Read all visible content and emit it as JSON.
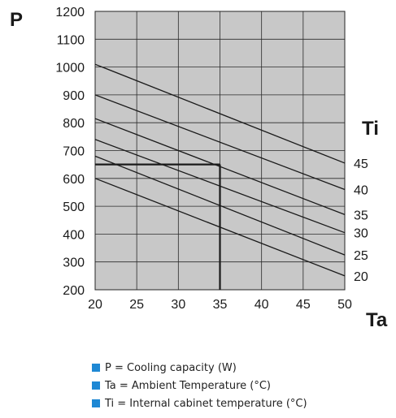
{
  "chart_data": {
    "type": "line",
    "y_title": "P",
    "x_title": "Ta",
    "series_title": "Ti",
    "xlim": [
      20,
      50
    ],
    "ylim": [
      200,
      1200
    ],
    "x_ticks": [
      20,
      25,
      30,
      35,
      40,
      45,
      50
    ],
    "y_ticks": [
      200,
      300,
      400,
      500,
      600,
      700,
      800,
      900,
      1000,
      1100,
      1200
    ],
    "grid": true,
    "series": [
      {
        "name": "45",
        "x": [
          20,
          50
        ],
        "y": [
          1010,
          655
        ]
      },
      {
        "name": "40",
        "x": [
          20,
          50
        ],
        "y": [
          900,
          560
        ]
      },
      {
        "name": "35",
        "x": [
          20,
          50
        ],
        "y": [
          815,
          470
        ]
      },
      {
        "name": "30",
        "x": [
          20,
          50
        ],
        "y": [
          740,
          405
        ]
      },
      {
        "name": "25",
        "x": [
          20,
          50
        ],
        "y": [
          680,
          325
        ]
      },
      {
        "name": "20",
        "x": [
          20,
          50
        ],
        "y": [
          600,
          250
        ]
      }
    ],
    "example_reading": {
      "x": 35,
      "y": 650
    },
    "colors": {
      "plot_bg": "#c8c8c8",
      "line": "#1a1a1a",
      "legend_marker": "#1e88d4"
    }
  },
  "legend": [
    "P = Cooling capacity (W)",
    "Ta = Ambient Temperature (°C)",
    "Ti = Internal cabinet temperature (°C)"
  ]
}
